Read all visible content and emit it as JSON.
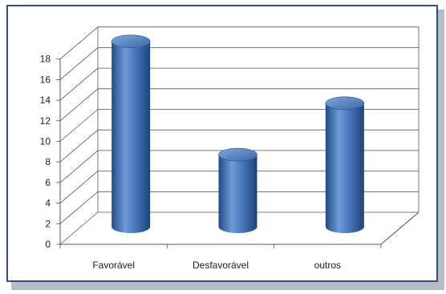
{
  "chart_data": {
    "type": "bar",
    "categories": [
      "Favorável",
      "Desfavorável",
      "outros"
    ],
    "values": [
      18,
      7,
      12
    ],
    "title": "",
    "xlabel": "",
    "ylabel": "",
    "ylim": [
      0,
      18
    ],
    "yticks": [
      "0",
      "2",
      "4",
      "6",
      "8",
      "10",
      "12",
      "14",
      "16",
      "18"
    ],
    "grid": true,
    "legend": "none",
    "colors": {
      "bar": "#3f6fb8",
      "bar_light": "#6f9ad8",
      "bar_dark": "#234a86",
      "grid": "#555555",
      "frame": "#2f4f7f"
    }
  }
}
